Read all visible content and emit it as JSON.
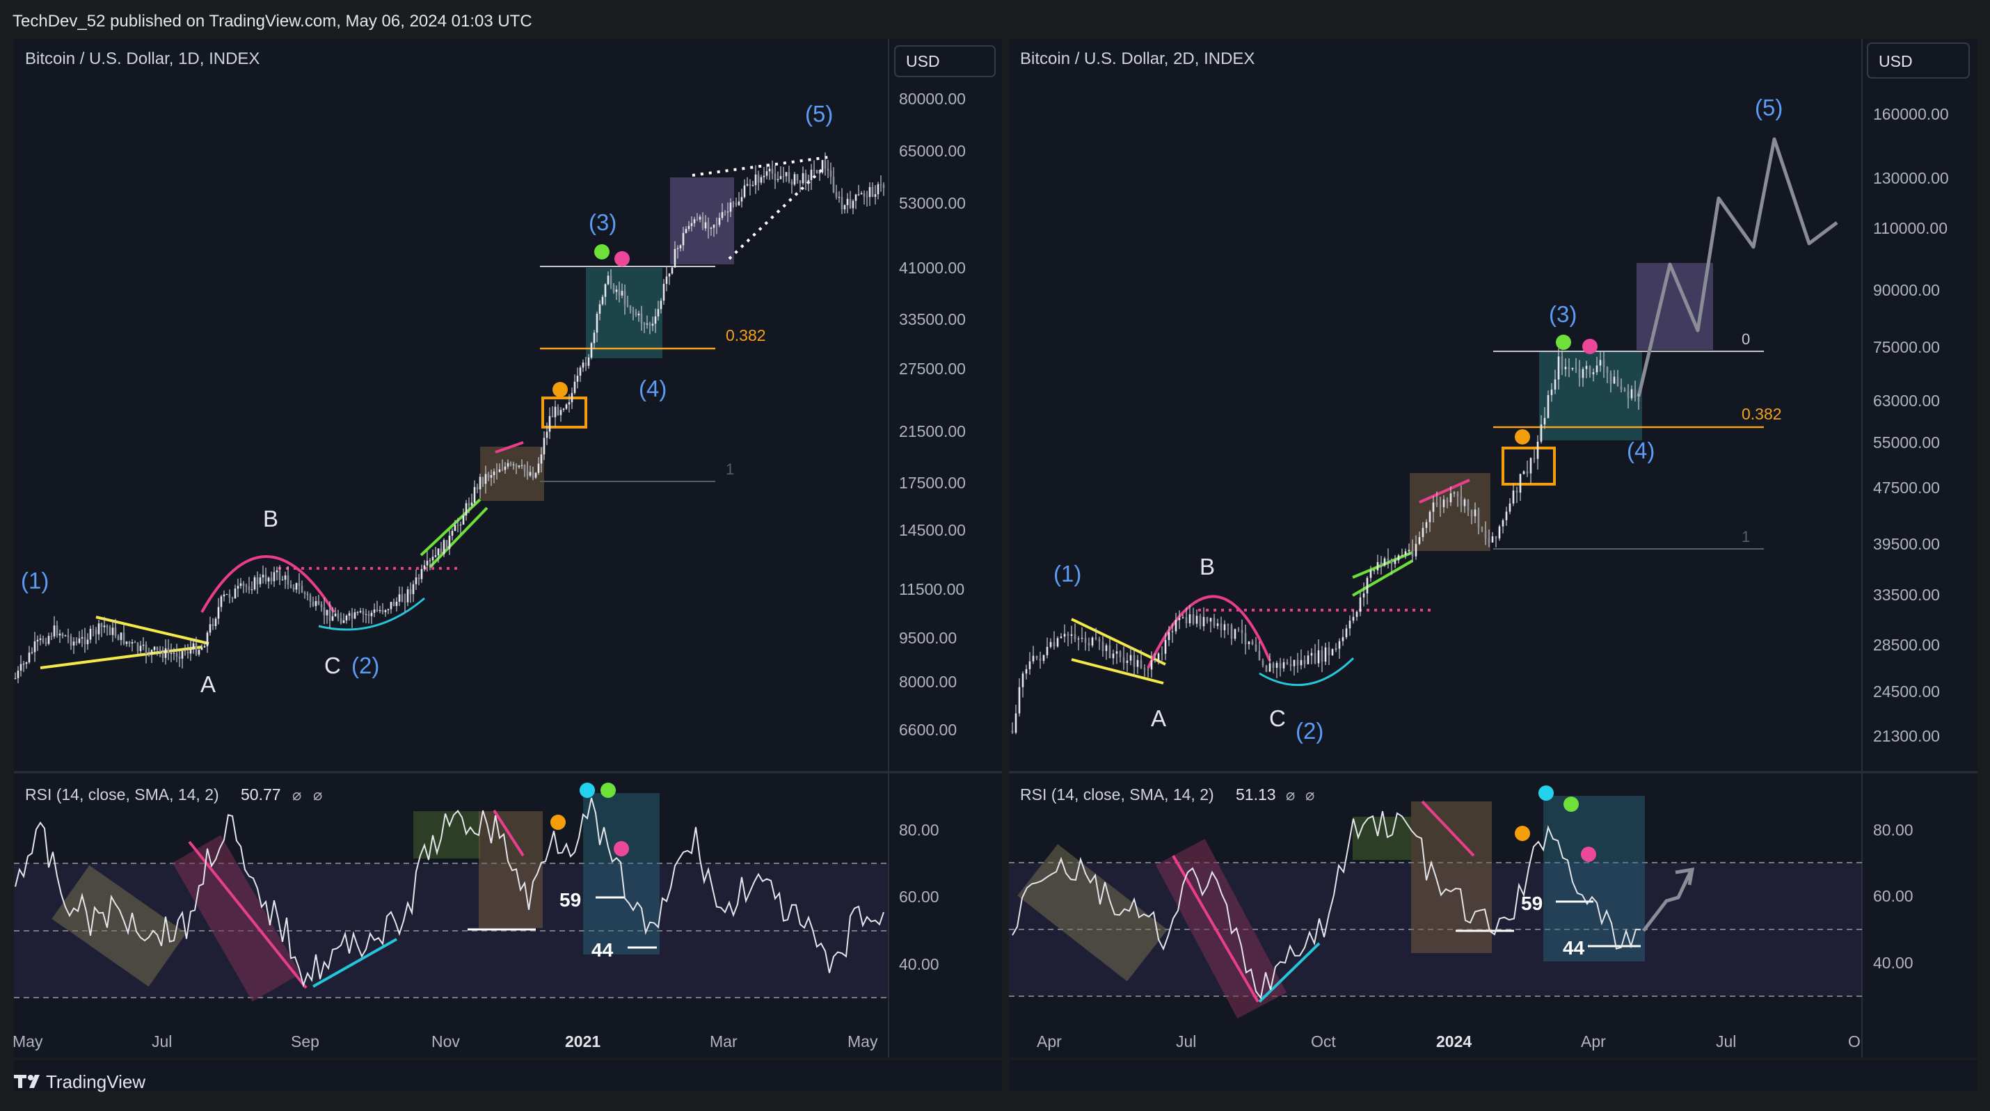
{
  "header": {
    "published": "TechDev_52 published on TradingView.com, May 06, 2024 01:03 UTC"
  },
  "footer": {
    "brand": "TradingView"
  },
  "colors": {
    "background": "#1b1c20",
    "panel": "#131722",
    "candle": "#c9ccd4",
    "wave_label": "#5b9cf6",
    "fib": "#f7a21b",
    "trendline_yellow": "#f5e94a",
    "arc_pink": "#e83e8c",
    "arc_cyan": "#26c6da",
    "channel_green": "#6ee03a",
    "dot_green": "#6ee03a",
    "dot_pink": "#ec4899",
    "dot_orange": "#f59e0b",
    "dot_cyan": "#22d3ee"
  },
  "chart_data": [
    {
      "type": "candlestick",
      "title": "Bitcoin / U.S. Dollar, 1D, INDEX",
      "currency": "USD",
      "y_scale": "log",
      "price_ticks": [
        "80000.00",
        "65000.00",
        "53000.00",
        "41000.00",
        "33500.00",
        "27500.00",
        "21500.00",
        "17500.00",
        "14500.00",
        "11500.00",
        "9500.00",
        "8000.00",
        "6600.00"
      ],
      "x_ticks": [
        "May",
        "Jul",
        "Sep",
        "Nov",
        "2021",
        "Mar",
        "May"
      ],
      "wave_labels": [
        "(1)",
        "(2)",
        "(3)",
        "(4)",
        "(5)"
      ],
      "correction_labels": [
        "A",
        "B",
        "C"
      ],
      "fib_levels": [
        {
          "label": "0.382"
        },
        {
          "label": "1"
        }
      ],
      "indicator": {
        "name": "RSI (14, close, SMA, 14, 2)",
        "value": "50.77",
        "ticks": [
          "80.00",
          "60.00",
          "40.00"
        ],
        "annotations": [
          "59",
          "44"
        ]
      }
    },
    {
      "type": "candlestick",
      "title": "Bitcoin / U.S. Dollar, 2D, INDEX",
      "currency": "USD",
      "y_scale": "log",
      "price_ticks": [
        "160000.00",
        "130000.00",
        "110000.00",
        "90000.00",
        "75000.00",
        "63000.00",
        "55000.00",
        "47500.00",
        "39500.00",
        "33500.00",
        "28500.00",
        "24500.00",
        "21300.00"
      ],
      "x_ticks": [
        "Apr",
        "Jul",
        "Oct",
        "2024",
        "Apr",
        "Jul",
        "O"
      ],
      "wave_labels": [
        "(1)",
        "(2)",
        "(3)",
        "(4)",
        "(5)"
      ],
      "correction_labels": [
        "A",
        "B",
        "C"
      ],
      "fib_levels": [
        {
          "label": "0"
        },
        {
          "label": "0.382"
        },
        {
          "label": "1"
        }
      ],
      "indicator": {
        "name": "RSI (14, close, SMA, 14, 2)",
        "value": "51.13",
        "ticks": [
          "80.00",
          "60.00",
          "40.00"
        ],
        "annotations": [
          "59",
          "44"
        ]
      }
    }
  ]
}
